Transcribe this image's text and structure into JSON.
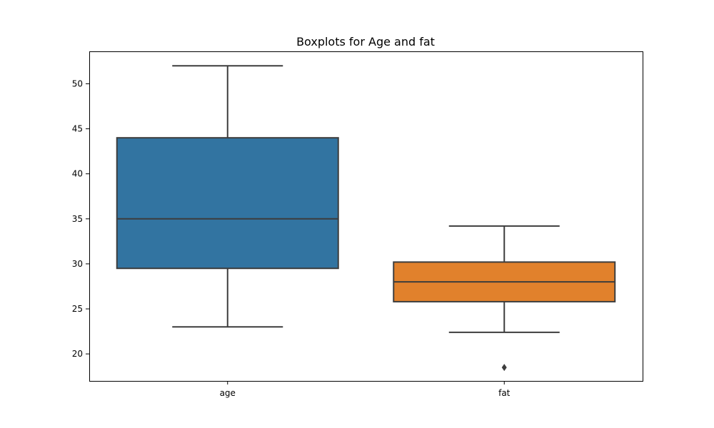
{
  "chart_data": {
    "type": "box",
    "title": "Boxplots for Age and fat",
    "xlabel": "",
    "ylabel": "",
    "categories": [
      "age",
      "fat"
    ],
    "ylim": [
      17.0,
      53.6
    ],
    "yticks": [
      20,
      25,
      30,
      35,
      40,
      45,
      50
    ],
    "grid": false,
    "boxes": [
      {
        "name": "age",
        "whisker_low": 23.0,
        "q1": 29.5,
        "median": 35.0,
        "q3": 44.0,
        "whisker_high": 52.0,
        "outliers": [],
        "color": "#3274a1"
      },
      {
        "name": "fat",
        "whisker_low": 22.4,
        "q1": 25.8,
        "median": 28.0,
        "q3": 30.2,
        "whisker_high": 34.2,
        "outliers": [
          18.5
        ],
        "color": "#e1812c"
      }
    ],
    "line_color": "#3d3d3d"
  }
}
